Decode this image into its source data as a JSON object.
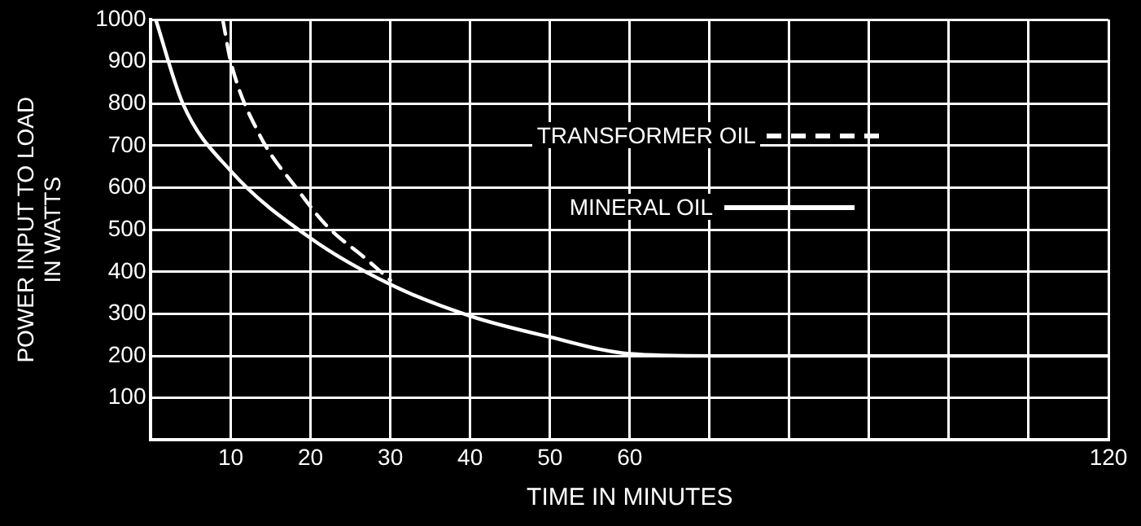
{
  "chart_data": {
    "type": "line",
    "xlabel": "TIME IN MINUTES",
    "ylabel": "POWER INPUT TO LOAD\nIN WATTS",
    "xlim": [
      0,
      120
    ],
    "xticks": [
      10,
      20,
      30,
      40,
      50,
      60,
      {
        "value": 70,
        "label": null
      },
      {
        "value": 80,
        "label": null
      },
      {
        "value": 90,
        "label": null
      },
      {
        "value": 100,
        "label": null
      },
      {
        "value": 110,
        "label": null
      },
      120
    ],
    "ylim": [
      0,
      1000
    ],
    "yticks": [
      100,
      200,
      300,
      400,
      500,
      600,
      700,
      800,
      900,
      1000
    ],
    "grid": true,
    "legend": "top",
    "marker": "none",
    "series": [
      {
        "name": "TRANSFORMER OIL",
        "color": "#ffffff",
        "line_style": "dashed",
        "x": [
          9,
          10,
          13.5,
          18.6,
          22,
          27,
          30
        ],
        "values": [
          1000,
          900,
          730,
          590,
          510,
          430,
          380
        ]
      },
      {
        "name": "MINERAL OIL",
        "color": "#ffffff",
        "line_style": "solid",
        "x": [
          0.6,
          4,
          10,
          20,
          30,
          40,
          50,
          60,
          70,
          120
        ],
        "values": [
          1000,
          800,
          640,
          480,
          370,
          295,
          245,
          205,
          200,
          200
        ]
      }
    ]
  }
}
